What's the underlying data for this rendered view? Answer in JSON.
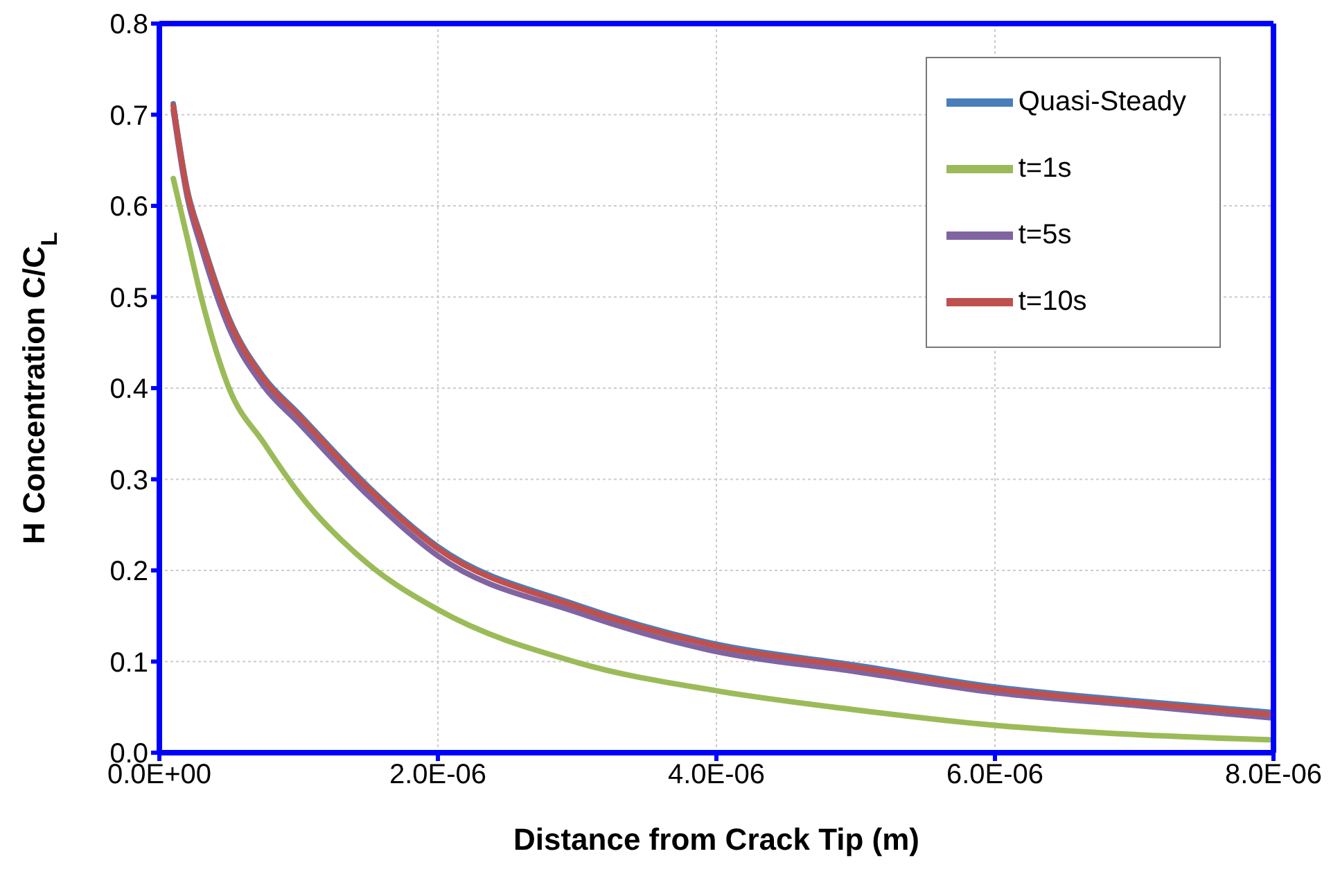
{
  "chart_data": {
    "type": "line",
    "xlabel": "Distance from Crack Tip (m)",
    "ylabel": "H Concentration C/C$_{L}$",
    "x": [
      1e-07,
      2e-07,
      3e-07,
      5e-07,
      7.5e-07,
      1e-06,
      1.5e-06,
      2e-06,
      3e-06,
      4e-06,
      5e-06,
      6e-06,
      7e-06,
      8e-06
    ],
    "series": [
      {
        "name": "Quasi-Steady",
        "color": "#4a7ebb",
        "values": [
          0.712,
          0.618,
          0.566,
          0.477,
          0.412,
          0.372,
          0.292,
          0.226,
          0.162,
          0.119,
          0.096,
          0.072,
          0.057,
          0.044
        ]
      },
      {
        "name": "t=1s",
        "color": "#9bbb59",
        "values": [
          0.63,
          0.565,
          0.5,
          0.4,
          0.34,
          0.285,
          0.207,
          0.157,
          0.099,
          0.068,
          0.047,
          0.03,
          0.02,
          0.014
        ]
      },
      {
        "name": "t=5s",
        "color": "#8064a2",
        "values": [
          0.705,
          0.61,
          0.555,
          0.466,
          0.402,
          0.362,
          0.282,
          0.216,
          0.154,
          0.111,
          0.089,
          0.066,
          0.052,
          0.038
        ]
      },
      {
        "name": "t=10s",
        "color": "#c0504d",
        "values": [
          0.71,
          0.616,
          0.564,
          0.475,
          0.41,
          0.37,
          0.29,
          0.224,
          0.16,
          0.117,
          0.094,
          0.07,
          0.055,
          0.042
        ]
      }
    ],
    "xlim": [
      0,
      8e-06
    ],
    "xticks": [
      {
        "value": 0,
        "label": "0.0E+00"
      },
      {
        "value": 2e-06,
        "label": "2.0E-06"
      },
      {
        "value": 4e-06,
        "label": "4.0E-06"
      },
      {
        "value": 6e-06,
        "label": "6.0E-06"
      },
      {
        "value": 8e-06,
        "label": "8.0E-06"
      }
    ],
    "ylim": [
      0,
      0.8
    ],
    "yticks": [
      {
        "value": 0,
        "label": "0.0"
      },
      0.1,
      0.2,
      0.3,
      0.4,
      0.5,
      0.6,
      0.7,
      0.8
    ],
    "grid": true,
    "legend": "top right",
    "marker": "none",
    "line_style": "solid"
  }
}
